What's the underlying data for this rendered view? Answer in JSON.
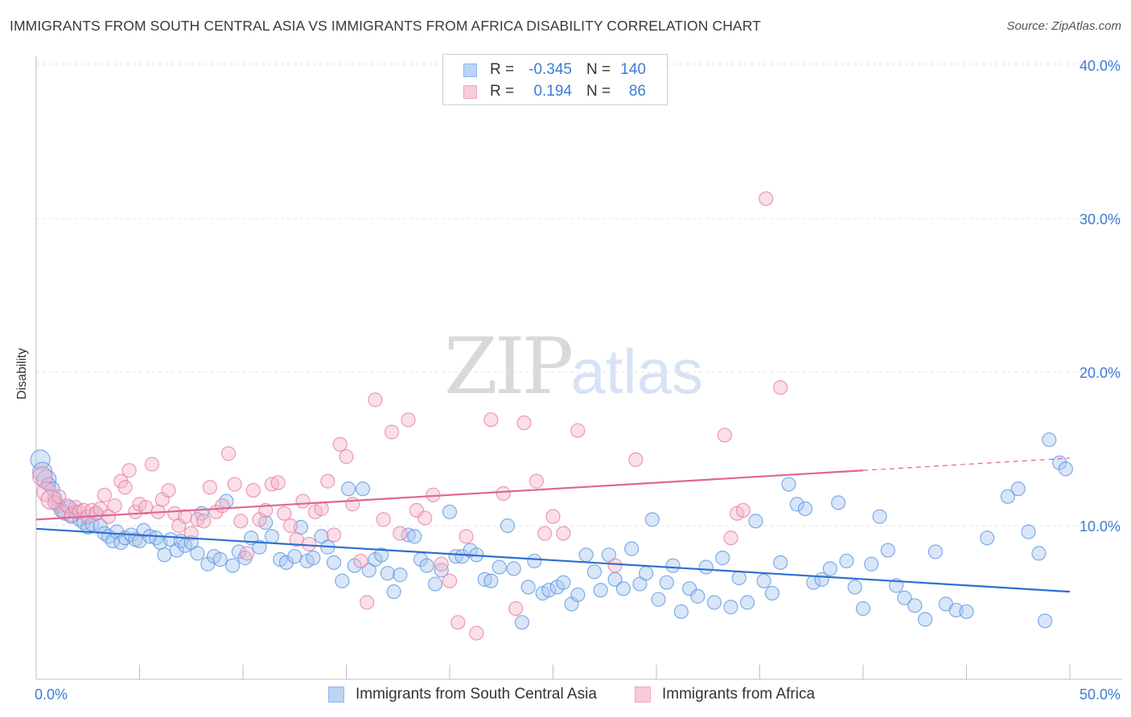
{
  "title": "IMMIGRANTS FROM SOUTH CENTRAL ASIA VS IMMIGRANTS FROM AFRICA DISABILITY CORRELATION CHART",
  "source": "Source: ZipAtlas.com",
  "watermark": {
    "zip": "ZIP",
    "atlas": "atlas"
  },
  "legend": {
    "rows": [
      {
        "r_label": "R =",
        "r_value": "-0.345",
        "n_label": "N =",
        "n_value": "140",
        "color": "#8fb7ec"
      },
      {
        "r_label": "R =",
        "r_value": "0.194",
        "n_label": "N =",
        "n_value": "86",
        "color": "#f3a6c0"
      }
    ]
  },
  "chart_data": {
    "type": "scatter",
    "title": "IMMIGRANTS FROM SOUTH CENTRAL ASIA VS IMMIGRANTS FROM AFRICA DISABILITY CORRELATION CHART",
    "xlabel": "",
    "ylabel": "Disability",
    "xlim": [
      0,
      50
    ],
    "ylim": [
      0,
      42
    ],
    "x_tick_labels": [
      "0.0%",
      "50.0%"
    ],
    "y_ticks": [
      10,
      20,
      30,
      40
    ],
    "y_tick_labels": [
      "10.0%",
      "20.0%",
      "30.0%",
      "40.0%"
    ],
    "grid": true,
    "legend_position": "top-center",
    "series": [
      {
        "name": "Immigrants from South Central Asia",
        "color": "#5b93e0",
        "fill": "#a9c8f0",
        "trend": {
          "x": [
            0,
            50
          ],
          "y": [
            9.8,
            5.7
          ]
        },
        "points": [
          [
            0.2,
            14.3
          ],
          [
            0.3,
            13.5
          ],
          [
            0.5,
            13.0
          ],
          [
            0.6,
            12.7
          ],
          [
            0.8,
            12.4
          ],
          [
            0.9,
            11.8
          ],
          [
            1.1,
            11.3
          ],
          [
            1.2,
            11.0
          ],
          [
            1.4,
            10.8
          ],
          [
            1.6,
            11.2
          ],
          [
            1.7,
            10.6
          ],
          [
            1.9,
            10.9
          ],
          [
            2.1,
            10.4
          ],
          [
            2.3,
            10.2
          ],
          [
            2.5,
            9.9
          ],
          [
            2.7,
            10.1
          ],
          [
            2.9,
            10.8
          ],
          [
            3.1,
            10.0
          ],
          [
            3.3,
            9.5
          ],
          [
            3.5,
            9.3
          ],
          [
            3.7,
            9.0
          ],
          [
            3.9,
            9.6
          ],
          [
            4.1,
            8.9
          ],
          [
            4.3,
            9.2
          ],
          [
            4.6,
            9.4
          ],
          [
            4.8,
            9.1
          ],
          [
            5.0,
            9.0
          ],
          [
            5.2,
            9.7
          ],
          [
            5.5,
            9.3
          ],
          [
            5.8,
            9.2
          ],
          [
            6.0,
            8.9
          ],
          [
            6.2,
            8.1
          ],
          [
            6.5,
            9.1
          ],
          [
            6.8,
            8.4
          ],
          [
            7.0,
            9.0
          ],
          [
            7.2,
            8.7
          ],
          [
            7.5,
            8.9
          ],
          [
            7.8,
            8.2
          ],
          [
            8.0,
            10.8
          ],
          [
            8.3,
            7.5
          ],
          [
            8.6,
            8.0
          ],
          [
            8.9,
            7.8
          ],
          [
            9.2,
            11.6
          ],
          [
            9.5,
            7.4
          ],
          [
            9.8,
            8.3
          ],
          [
            10.1,
            7.9
          ],
          [
            10.4,
            9.2
          ],
          [
            10.8,
            8.6
          ],
          [
            11.1,
            10.2
          ],
          [
            11.4,
            9.3
          ],
          [
            11.8,
            7.8
          ],
          [
            12.1,
            7.6
          ],
          [
            12.5,
            8.0
          ],
          [
            12.8,
            9.9
          ],
          [
            13.1,
            7.7
          ],
          [
            13.4,
            7.9
          ],
          [
            13.8,
            9.3
          ],
          [
            14.1,
            8.6
          ],
          [
            14.4,
            7.6
          ],
          [
            14.8,
            6.4
          ],
          [
            15.1,
            12.4
          ],
          [
            15.4,
            7.4
          ],
          [
            15.8,
            12.4
          ],
          [
            16.1,
            7.1
          ],
          [
            16.4,
            7.8
          ],
          [
            16.7,
            8.1
          ],
          [
            17.0,
            6.9
          ],
          [
            17.3,
            5.7
          ],
          [
            17.6,
            6.8
          ],
          [
            18.0,
            9.4
          ],
          [
            18.3,
            9.3
          ],
          [
            18.6,
            7.8
          ],
          [
            18.9,
            7.4
          ],
          [
            19.3,
            6.2
          ],
          [
            19.6,
            7.1
          ],
          [
            20.0,
            10.9
          ],
          [
            20.3,
            8.0
          ],
          [
            20.6,
            8.0
          ],
          [
            21.0,
            8.4
          ],
          [
            21.3,
            8.1
          ],
          [
            21.7,
            6.5
          ],
          [
            22.0,
            6.4
          ],
          [
            22.4,
            7.3
          ],
          [
            22.8,
            10.0
          ],
          [
            23.1,
            7.2
          ],
          [
            23.5,
            3.7
          ],
          [
            23.8,
            6.0
          ],
          [
            24.1,
            7.7
          ],
          [
            24.5,
            5.6
          ],
          [
            24.8,
            5.8
          ],
          [
            25.2,
            6.0
          ],
          [
            25.5,
            6.3
          ],
          [
            25.9,
            4.9
          ],
          [
            26.2,
            5.5
          ],
          [
            26.6,
            8.1
          ],
          [
            27.0,
            7.0
          ],
          [
            27.3,
            5.8
          ],
          [
            27.7,
            8.1
          ],
          [
            28.0,
            6.5
          ],
          [
            28.4,
            5.9
          ],
          [
            28.8,
            8.5
          ],
          [
            29.2,
            6.2
          ],
          [
            29.5,
            6.9
          ],
          [
            29.8,
            10.4
          ],
          [
            30.1,
            5.2
          ],
          [
            30.5,
            6.3
          ],
          [
            30.8,
            7.4
          ],
          [
            31.2,
            4.4
          ],
          [
            31.6,
            5.9
          ],
          [
            32.0,
            5.4
          ],
          [
            32.4,
            7.3
          ],
          [
            32.8,
            5.0
          ],
          [
            33.2,
            7.9
          ],
          [
            33.6,
            4.7
          ],
          [
            34.0,
            6.6
          ],
          [
            34.4,
            5.0
          ],
          [
            34.8,
            10.3
          ],
          [
            35.2,
            6.4
          ],
          [
            35.6,
            5.6
          ],
          [
            36.0,
            7.6
          ],
          [
            36.4,
            12.7
          ],
          [
            36.8,
            11.4
          ],
          [
            37.2,
            11.1
          ],
          [
            37.6,
            6.3
          ],
          [
            38.0,
            6.5
          ],
          [
            38.4,
            7.2
          ],
          [
            38.8,
            11.5
          ],
          [
            39.2,
            7.7
          ],
          [
            39.6,
            6.0
          ],
          [
            40.0,
            4.6
          ],
          [
            40.4,
            7.5
          ],
          [
            40.8,
            10.6
          ],
          [
            41.2,
            8.4
          ],
          [
            41.6,
            6.1
          ],
          [
            42.0,
            5.3
          ],
          [
            42.5,
            4.8
          ],
          [
            43.0,
            3.9
          ],
          [
            43.5,
            8.3
          ],
          [
            44.0,
            4.9
          ],
          [
            44.5,
            4.5
          ],
          [
            45.0,
            4.4
          ],
          [
            46.0,
            9.2
          ],
          [
            47.0,
            11.9
          ],
          [
            47.5,
            12.4
          ],
          [
            48.0,
            9.6
          ],
          [
            48.5,
            8.2
          ],
          [
            49.0,
            15.6
          ],
          [
            49.5,
            14.1
          ],
          [
            49.8,
            13.7
          ],
          [
            48.8,
            3.8
          ]
        ]
      },
      {
        "name": "Immigrants from Africa",
        "color": "#e8799f",
        "fill": "#f5b8cb",
        "trend": {
          "x": [
            0,
            40
          ],
          "y": [
            10.4,
            13.6
          ]
        },
        "trend_dashed": {
          "x": [
            40,
            50
          ],
          "y": [
            13.6,
            14.4
          ]
        },
        "points": [
          [
            0.3,
            13.2
          ],
          [
            0.5,
            12.2
          ],
          [
            0.7,
            11.7
          ],
          [
            0.9,
            11.5
          ],
          [
            1.1,
            11.9
          ],
          [
            1.3,
            10.9
          ],
          [
            1.5,
            11.3
          ],
          [
            1.7,
            10.7
          ],
          [
            1.9,
            11.2
          ],
          [
            2.1,
            10.9
          ],
          [
            2.3,
            11.0
          ],
          [
            2.5,
            10.6
          ],
          [
            2.7,
            11.0
          ],
          [
            2.9,
            10.8
          ],
          [
            3.1,
            11.1
          ],
          [
            3.3,
            12.0
          ],
          [
            3.5,
            10.6
          ],
          [
            3.8,
            11.3
          ],
          [
            4.1,
            12.9
          ],
          [
            4.3,
            12.5
          ],
          [
            4.5,
            13.6
          ],
          [
            4.8,
            10.9
          ],
          [
            5.0,
            11.4
          ],
          [
            5.3,
            11.2
          ],
          [
            5.6,
            14.0
          ],
          [
            5.9,
            10.9
          ],
          [
            6.1,
            11.7
          ],
          [
            6.4,
            12.3
          ],
          [
            6.7,
            10.8
          ],
          [
            6.9,
            10.0
          ],
          [
            7.2,
            10.6
          ],
          [
            7.5,
            9.5
          ],
          [
            7.8,
            10.4
          ],
          [
            8.1,
            10.3
          ],
          [
            8.4,
            12.5
          ],
          [
            8.7,
            10.9
          ],
          [
            9.0,
            11.3
          ],
          [
            9.3,
            14.7
          ],
          [
            9.6,
            12.7
          ],
          [
            9.9,
            10.3
          ],
          [
            10.2,
            8.2
          ],
          [
            10.5,
            12.3
          ],
          [
            10.8,
            10.4
          ],
          [
            11.1,
            11.0
          ],
          [
            11.4,
            12.7
          ],
          [
            11.7,
            12.8
          ],
          [
            12.0,
            10.8
          ],
          [
            12.3,
            10.0
          ],
          [
            12.6,
            9.1
          ],
          [
            12.9,
            11.6
          ],
          [
            13.2,
            8.8
          ],
          [
            13.5,
            10.9
          ],
          [
            13.8,
            11.1
          ],
          [
            14.1,
            12.9
          ],
          [
            14.4,
            9.4
          ],
          [
            14.7,
            15.3
          ],
          [
            15.0,
            14.5
          ],
          [
            15.3,
            11.4
          ],
          [
            15.7,
            7.7
          ],
          [
            16.0,
            5.0
          ],
          [
            16.4,
            18.2
          ],
          [
            16.8,
            10.4
          ],
          [
            17.2,
            16.1
          ],
          [
            17.6,
            9.5
          ],
          [
            18.0,
            16.9
          ],
          [
            18.4,
            11.0
          ],
          [
            18.8,
            10.5
          ],
          [
            19.2,
            12.0
          ],
          [
            19.6,
            7.5
          ],
          [
            20.0,
            6.4
          ],
          [
            20.4,
            3.7
          ],
          [
            20.8,
            9.3
          ],
          [
            21.3,
            3.0
          ],
          [
            22.0,
            16.9
          ],
          [
            23.2,
            4.6
          ],
          [
            23.6,
            16.7
          ],
          [
            24.2,
            12.9
          ],
          [
            24.6,
            9.5
          ],
          [
            25.0,
            10.6
          ],
          [
            25.5,
            9.5
          ],
          [
            26.2,
            16.2
          ],
          [
            28.0,
            7.4
          ],
          [
            29.0,
            14.3
          ],
          [
            33.3,
            15.9
          ],
          [
            33.6,
            9.2
          ],
          [
            33.9,
            10.8
          ],
          [
            35.3,
            31.3
          ],
          [
            36.0,
            19.0
          ],
          [
            34.2,
            11.0
          ],
          [
            22.6,
            12.1
          ]
        ]
      }
    ]
  },
  "bottom_legend": [
    {
      "label": "Immigrants from South Central Asia",
      "color": "#8fb7ec"
    },
    {
      "label": "Immigrants from Africa",
      "color": "#f3a6c0"
    }
  ]
}
